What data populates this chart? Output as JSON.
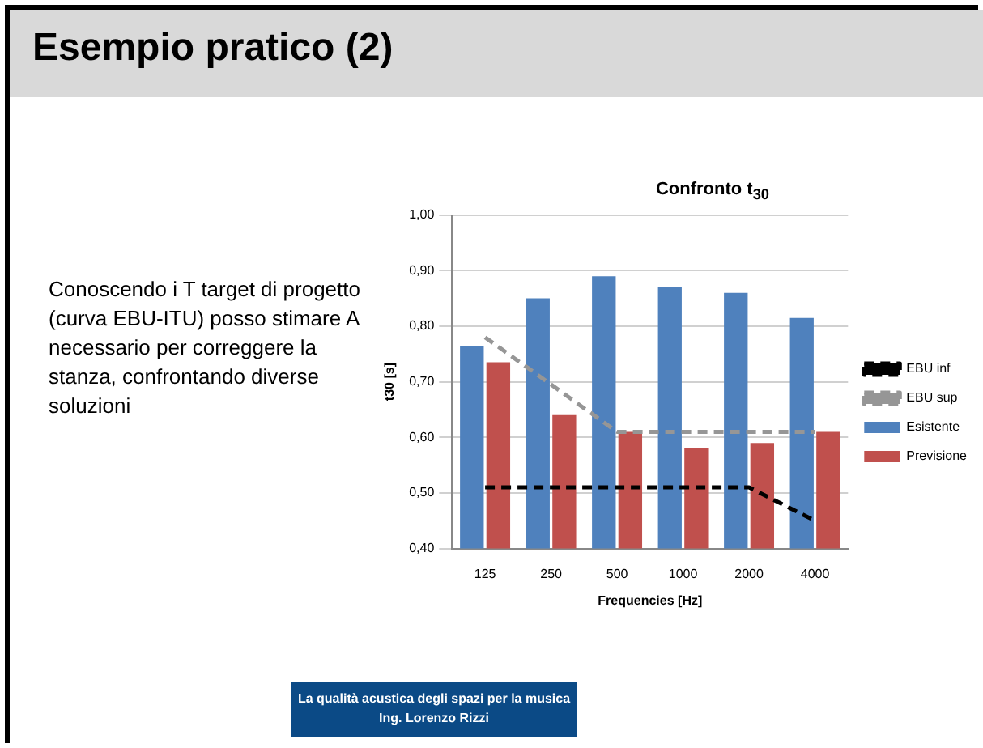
{
  "chart_data": {
    "type": "bar",
    "title": "Confronto t$_{30}$",
    "xlabel": "Frequencies [Hz]",
    "ylabel": "t30 [s]",
    "categories": [
      "125",
      "250",
      "500",
      "1000",
      "2000",
      "4000"
    ],
    "series": [
      {
        "name": "Esistente",
        "color": "#4f81bd",
        "values": [
          0.765,
          0.85,
          0.89,
          0.87,
          0.86,
          0.815
        ]
      },
      {
        "name": "Previsione",
        "color": "#c0504d",
        "values": [
          0.735,
          0.64,
          0.61,
          0.58,
          0.59,
          0.61
        ]
      },
      {
        "name": "EBU inf",
        "type": "line",
        "color": "#000000",
        "line_style": "dashed",
        "marker": "none",
        "values": [
          0.51,
          0.51,
          0.51,
          0.51,
          0.51,
          0.45
        ]
      },
      {
        "name": "EBU sup",
        "type": "line",
        "color": "#969696",
        "line_style": "dashed",
        "marker": "none",
        "values": [
          0.78,
          0.695,
          0.61,
          0.61,
          0.61,
          0.61
        ]
      }
    ],
    "ylim": [
      0.4,
      1.0
    ],
    "yticks": [
      {
        "value": 0.4,
        "label": "0,40"
      },
      {
        "value": 0.5,
        "label": "0,50"
      },
      {
        "value": 0.6,
        "label": "0,60"
      },
      {
        "value": 0.7,
        "label": "0,70"
      },
      {
        "value": 0.8,
        "label": "0,80"
      },
      {
        "value": 0.9,
        "label": "0,90"
      },
      {
        "value": 1.0,
        "label": "1,00"
      }
    ],
    "grid": "y",
    "legend": "right",
    "annotations": [
      "Esempio pratico (2)",
      "Conoscendo i T target di progetto (curva EBU-ITU) posso stimare A necessario per correggere la stanza, confrontando diverse soluzioni",
      "La qualità acustica degli spazi per la musica",
      "Ing. Lorenzo Rizzi"
    ]
  }
}
